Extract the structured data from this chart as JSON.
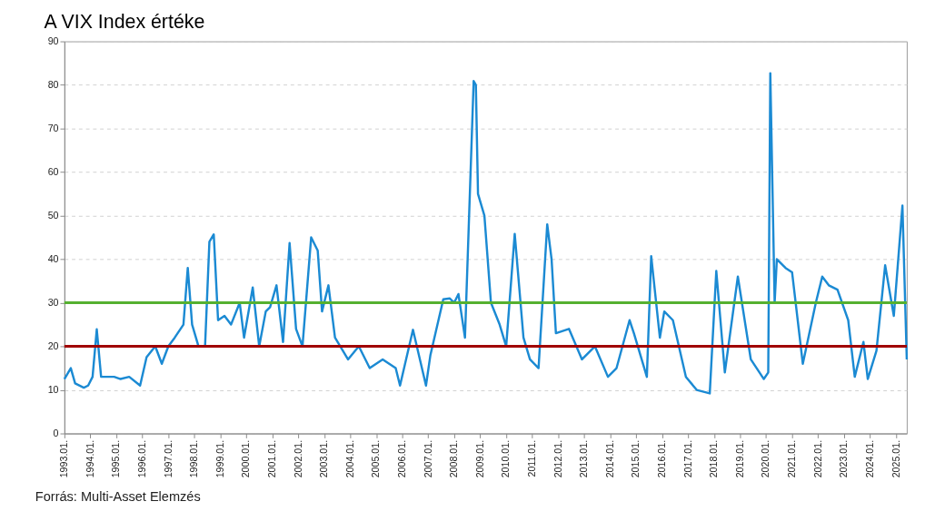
{
  "chart_data": {
    "type": "line",
    "title": "A VIX Index értéke",
    "annotations": [
      "Forrás: Multi-Asset Elemzés"
    ],
    "x": [
      "1993-01",
      "1993-04",
      "1993-06",
      "1993-10",
      "1993-12",
      "1994-02",
      "1994-04",
      "1994-06",
      "1994-12",
      "1995-03",
      "1995-07",
      "1995-12",
      "1996-03",
      "1996-07",
      "1996-10",
      "1997-01",
      "1997-04",
      "1997-08",
      "1997-10",
      "1997-12",
      "1998-03",
      "1998-06",
      "1998-08",
      "1998-10",
      "1998-12",
      "1999-03",
      "1999-06",
      "1999-10",
      "1999-12",
      "2000-04",
      "2000-07",
      "2000-10",
      "2000-12",
      "2001-03",
      "2001-06",
      "2001-09",
      "2001-12",
      "2002-03",
      "2002-07",
      "2002-10",
      "2002-12",
      "2003-03",
      "2003-06",
      "2003-12",
      "2004-05",
      "2004-10",
      "2005-04",
      "2005-10",
      "2005-12",
      "2006-06",
      "2006-12",
      "2007-02",
      "2007-08",
      "2007-11",
      "2008-01",
      "2008-03",
      "2008-06",
      "2008-10",
      "2008-11",
      "2008-12",
      "2009-03",
      "2009-06",
      "2009-10",
      "2010-01",
      "2010-05",
      "2010-09",
      "2010-12",
      "2011-04",
      "2011-08",
      "2011-10",
      "2011-12",
      "2012-06",
      "2012-12",
      "2013-06",
      "2013-12",
      "2014-04",
      "2014-10",
      "2014-12",
      "2015-06",
      "2015-08",
      "2015-12",
      "2016-02",
      "2016-06",
      "2016-12",
      "2017-05",
      "2017-11",
      "2018-02",
      "2018-06",
      "2018-12",
      "2019-06",
      "2019-12",
      "2020-02",
      "2020-03",
      "2020-05",
      "2020-06",
      "2020-10",
      "2021-01",
      "2021-06",
      "2021-12",
      "2022-03",
      "2022-06",
      "2022-10",
      "2023-03",
      "2023-06",
      "2023-10",
      "2023-12",
      "2024-04",
      "2024-08",
      "2024-12",
      "2025-04",
      "2025-06"
    ],
    "series": [
      {
        "color": "#1b8ad3",
        "values": [
          12.5,
          15,
          11.5,
          10.5,
          11,
          13,
          23.9,
          13,
          13,
          12.5,
          13,
          11,
          17.5,
          20,
          16,
          20,
          22,
          25,
          38,
          25,
          20,
          20,
          44,
          45.7,
          26,
          27,
          25,
          30,
          22,
          33.5,
          20,
          28,
          29,
          34,
          21,
          43.7,
          24,
          20,
          45,
          42,
          28,
          34,
          22,
          17,
          20,
          15,
          17,
          15,
          11,
          23.8,
          11,
          18,
          30.8,
          31,
          30,
          32,
          22,
          80.9,
          80,
          55,
          50,
          30,
          25,
          20,
          45.8,
          22,
          17,
          15,
          48,
          40,
          23,
          24,
          17,
          20,
          13,
          15,
          26,
          23,
          13,
          40.7,
          22,
          28,
          26,
          13,
          10,
          9.2,
          37.3,
          14,
          36,
          17,
          12.5,
          14,
          82.7,
          30,
          40,
          38,
          37,
          16,
          30,
          36,
          34,
          33,
          26,
          13,
          21,
          12.5,
          19,
          38.6,
          27,
          52.3,
          17
        ]
      }
    ],
    "xlim": [
      "1993-01",
      "2025-06"
    ],
    "xticks": [
      {
        "value": "1993-01",
        "label": "1993.01."
      },
      {
        "value": "1994-01",
        "label": "1994.01."
      },
      {
        "value": "1995-01",
        "label": "1995.01."
      },
      {
        "value": "1996-01",
        "label": "1996.01."
      },
      {
        "value": "1997-01",
        "label": "1997.01."
      },
      {
        "value": "1998-01",
        "label": "1998.01."
      },
      {
        "value": "1999-01",
        "label": "1999.01."
      },
      {
        "value": "2000-01",
        "label": "2000.01."
      },
      {
        "value": "2001-01",
        "label": "2001.01."
      },
      {
        "value": "2002-01",
        "label": "2002.01."
      },
      {
        "value": "2003-01",
        "label": "2003.01."
      },
      {
        "value": "2004-01",
        "label": "2004.01."
      },
      {
        "value": "2005-01",
        "label": "2005.01."
      },
      {
        "value": "2006-01",
        "label": "2006.01."
      },
      {
        "value": "2007-01",
        "label": "2007.01."
      },
      {
        "value": "2008-01",
        "label": "2008.01."
      },
      {
        "value": "2009-01",
        "label": "2009.01."
      },
      {
        "value": "2010-01",
        "label": "2010.01."
      },
      {
        "value": "2011-01",
        "label": "2011.01."
      },
      {
        "value": "2012-01",
        "label": "2012.01."
      },
      {
        "value": "2013-01",
        "label": "2013.01."
      },
      {
        "value": "2014-01",
        "label": "2014.01."
      },
      {
        "value": "2015-01",
        "label": "2015.01."
      },
      {
        "value": "2016-01",
        "label": "2016.01."
      },
      {
        "value": "2017-01",
        "label": "2017.01."
      },
      {
        "value": "2018-01",
        "label": "2018.01."
      },
      {
        "value": "2019-01",
        "label": "2019.01."
      },
      {
        "value": "2020-01",
        "label": "2020.01."
      },
      {
        "value": "2021-01",
        "label": "2021.01."
      },
      {
        "value": "2022-01",
        "label": "2022.01."
      },
      {
        "value": "2023-01",
        "label": "2023.01."
      },
      {
        "value": "2024-01",
        "label": "2024.01."
      },
      {
        "value": "2025-01",
        "label": "2025.01."
      }
    ],
    "ylim": [
      0,
      90
    ],
    "yticks": [
      0,
      10,
      20,
      30,
      40,
      50,
      60,
      70,
      80,
      90
    ],
    "ref_lines": [
      {
        "axis": "y",
        "value": 20,
        "color": "#a00000"
      },
      {
        "axis": "y",
        "value": 30,
        "color": "#55b030"
      }
    ],
    "grid": "y",
    "marker": "none",
    "line_style": "solid"
  }
}
